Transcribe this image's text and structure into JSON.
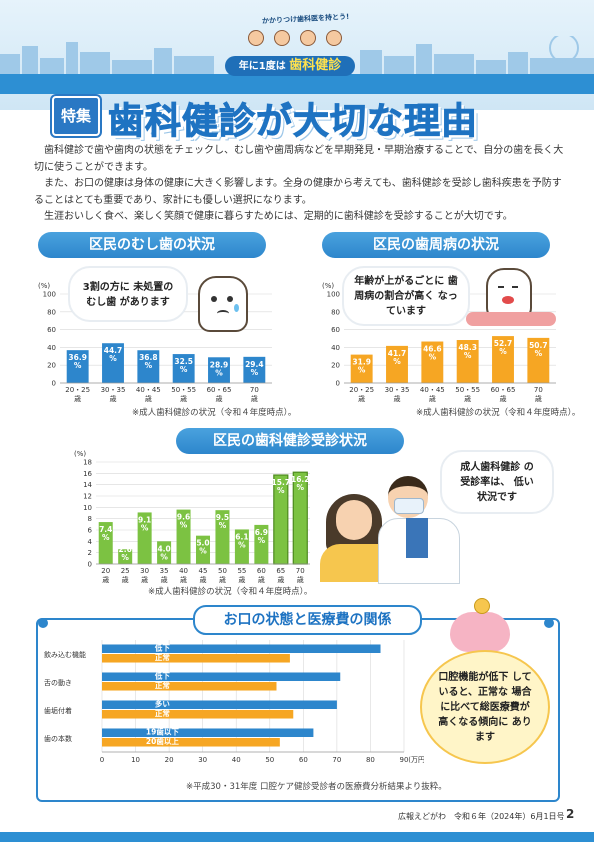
{
  "header": {
    "catchphrase": "かかりつけ歯科医を持とう!",
    "banner_prefix": "年に1度は",
    "banner_main": "歯科健診"
  },
  "title": {
    "badge": "特集",
    "main": "歯科健診が大切な理由"
  },
  "intro": [
    "歯科健診で歯や歯肉の状態をチェックし、むし歯や歯周病などを早期発見・早期治療することで、自分の歯を長く大切に使うことができます。",
    "また、お口の健康は身体の健康に大きく影響します。全身の健康から考えても、歯科健診を受診し歯科疾患を予防することはとても重要であり、家計にも優しい選択になります。",
    "生涯おいしく食べ、楽しく笑顔で健康に暮らすためには、定期的に歯科健診を受診することが大切です。"
  ],
  "sections": {
    "caries_title": "区民のむし歯の状況",
    "perio_title": "区民の歯周病の状況",
    "checkup_title": "区民の歯科健診受診状況",
    "cost_title": "お口の状態と医療費の関係"
  },
  "bubbles": {
    "caries": "3割の方に 未処置のむし歯 があります",
    "perio": "年齢が上がるごとに 歯周病の割合が高く なっています",
    "checkup": "成人歯科健診 の受診率は、 低い状況です",
    "cost": "口腔機能が低下 していると、正常な 場合に比べて総医療費が 高くなる傾向に あります"
  },
  "notes": {
    "caries": "※成人歯科健診の状況（令和４年度時点）。",
    "perio": "※成人歯科健診の状況（令和４年度時点）。",
    "checkup": "※成人歯科健診の状況（令和４年度時点）。",
    "cost": "※平成30・31年度 口腔ケア健診受診者の医療費分析結果より抜粋。"
  },
  "footer": {
    "paper": "広報えどがわ　令和６年（2024年）6月1日号",
    "page": "2"
  },
  "colors": {
    "blue": "#2d86cc",
    "orange": "#f6a623",
    "green": "#7cc242",
    "navy": "#1e73c2"
  },
  "chart_data": [
    {
      "type": "bar",
      "title": "区民のむし歯の状況",
      "ylabel": "(%)",
      "ylim": [
        0,
        100
      ],
      "yticks": [
        0,
        20,
        40,
        60,
        80,
        100
      ],
      "categories": [
        "20・25歳",
        "30・35歳",
        "40・45歳",
        "50・55歳",
        "60・65歳",
        "70歳"
      ],
      "values": [
        36.9,
        44.7,
        36.8,
        32.5,
        28.9,
        29.4
      ],
      "value_labels": [
        "36.9%",
        "44.7%",
        "36.8%",
        "32.5%",
        "28.9%",
        "29.4%"
      ],
      "color": "#2d86cc"
    },
    {
      "type": "bar",
      "title": "区民の歯周病の状況",
      "ylabel": "(%)",
      "ylim": [
        0,
        100
      ],
      "yticks": [
        0,
        20,
        40,
        60,
        80,
        100
      ],
      "categories": [
        "20・25歳",
        "30・35歳",
        "40・45歳",
        "50・55歳",
        "60・65歳",
        "70歳"
      ],
      "values": [
        31.9,
        41.7,
        46.6,
        48.3,
        52.7,
        50.7
      ],
      "value_labels": [
        "31.9%",
        "41.7%",
        "46.6%",
        "48.3%",
        "52.7%",
        "50.7%"
      ],
      "color": "#f6a623"
    },
    {
      "type": "bar",
      "title": "区民の歯科健診受診状況",
      "ylabel": "(%)",
      "ylim": [
        0,
        18
      ],
      "yticks": [
        0,
        2,
        4,
        6,
        8,
        10,
        12,
        14,
        16,
        18
      ],
      "categories": [
        "20歳",
        "25歳",
        "30歳",
        "35歳",
        "40歳",
        "45歳",
        "50歳",
        "55歳",
        "60歳",
        "65歳",
        "70歳"
      ],
      "values": [
        7.4,
        2.6,
        9.1,
        4.0,
        9.6,
        5.0,
        9.5,
        6.1,
        6.9,
        15.7,
        16.2
      ],
      "value_labels": [
        "7.4%",
        "2.6%",
        "9.1%",
        "4.0%",
        "9.6%",
        "5.0%",
        "9.5%",
        "6.1%",
        "6.9%",
        "15.7%",
        "16.2%"
      ],
      "highlight": [
        false,
        false,
        false,
        false,
        false,
        false,
        false,
        false,
        false,
        true,
        true
      ],
      "color": "#7cc242"
    },
    {
      "type": "bar",
      "orientation": "horizontal",
      "title": "お口の状態と医療費の関係",
      "xlabel": "(万円)",
      "xlim": [
        0,
        90
      ],
      "xticks": [
        0,
        10,
        20,
        30,
        40,
        50,
        60,
        70,
        80,
        90
      ],
      "categories": [
        "飲み込む機能",
        "舌の動き",
        "歯垢付着",
        "歯の本数"
      ],
      "series": [
        {
          "labels": [
            "低下",
            "低下",
            "多い",
            "19歯以下"
          ],
          "values": [
            83,
            71,
            70,
            63
          ],
          "color": "#2d86cc"
        },
        {
          "labels": [
            "正常",
            "正常",
            "正常",
            "20歯以上"
          ],
          "values": [
            56,
            52,
            57,
            53
          ],
          "color": "#f6a623"
        }
      ]
    }
  ]
}
